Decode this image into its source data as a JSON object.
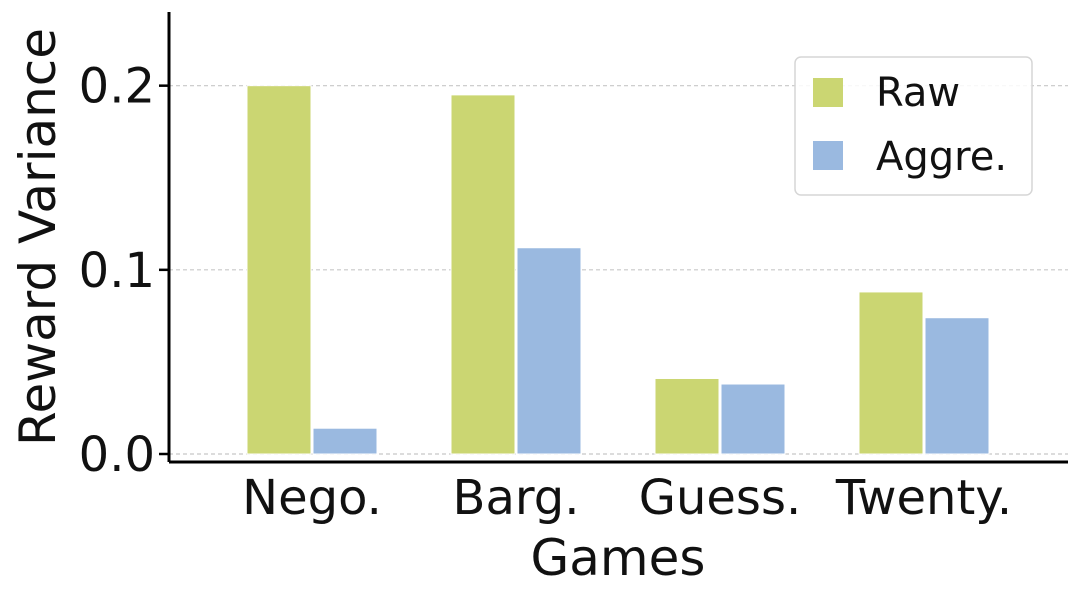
{
  "chart_data": {
    "type": "bar",
    "categories": [
      "Nego.",
      "Barg.",
      "Guess.",
      "Twenty."
    ],
    "series": [
      {
        "name": "Raw",
        "color": "#cbd672",
        "values": [
          0.2,
          0.195,
          0.041,
          0.088
        ]
      },
      {
        "name": "Aggre.",
        "color": "#9ab9e0",
        "values": [
          0.014,
          0.112,
          0.038,
          0.074
        ]
      }
    ],
    "xlabel": "Games",
    "ylabel": "Reward Variance",
    "ylim": [
      0,
      0.24
    ],
    "yticks": [
      0.0,
      0.1,
      0.2
    ],
    "ytick_labels": [
      "0.0",
      "0.1",
      "0.2"
    ],
    "grid": true,
    "legend_position": "top-right"
  }
}
